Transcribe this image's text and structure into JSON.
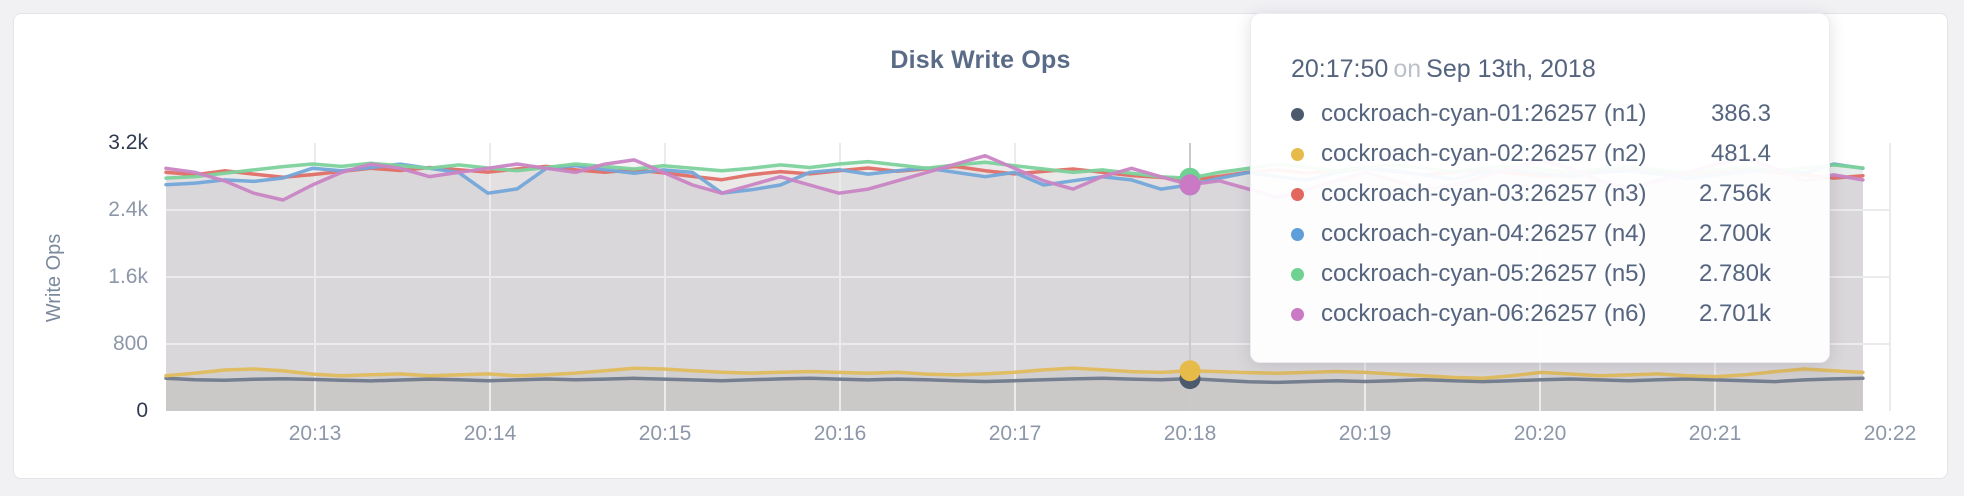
{
  "chart_data": {
    "type": "line",
    "title": "Disk Write Ops",
    "ylabel": "Write Ops",
    "xlabel": "",
    "grid": true,
    "ylim": [
      0,
      3200
    ],
    "y_ticks": [
      "0",
      "800",
      "1.6k",
      "2.4k",
      "3.2k"
    ],
    "x_ticks": [
      "20:13",
      "20:14",
      "20:15",
      "20:16",
      "20:17",
      "20:18",
      "20:19",
      "20:20",
      "20:21",
      "20:22"
    ],
    "point_interval_seconds": 10,
    "hover_index": 35,
    "hover_time": "20:17:50",
    "series": [
      {
        "name": "cockroach-cyan-01:26257 (n1)",
        "dot_color": "#4c5a6d",
        "line_color": "#6f7a8c",
        "values": [
          392,
          374,
          366,
          378,
          385,
          377,
          368,
          360,
          370,
          381,
          372,
          362,
          371,
          382,
          373,
          381,
          390,
          381,
          371,
          362,
          372,
          383,
          391,
          381,
          371,
          381,
          372,
          361,
          352,
          362,
          373,
          383,
          391,
          381,
          372,
          386.3,
          368,
          350,
          341,
          352,
          362,
          352,
          362,
          372,
          361,
          351,
          362,
          373,
          382,
          371,
          361,
          372,
          382,
          371,
          361,
          351,
          371,
          383,
          391
        ]
      },
      {
        "name": "cockroach-cyan-02:26257 (n2)",
        "dot_color": "#e7bb49",
        "line_color": "#e0ba5c",
        "values": [
          421,
          452,
          489,
          502,
          480,
          441,
          422,
          432,
          443,
          421,
          431,
          443,
          421,
          432,
          452,
          481,
          511,
          501,
          481,
          462,
          452,
          462,
          472,
          461,
          451,
          462,
          441,
          431,
          443,
          462,
          491,
          512,
          492,
          471,
          461,
          481.4,
          471,
          459,
          450,
          461,
          472,
          461,
          441,
          421,
          401,
          391,
          421,
          461,
          442,
          421,
          431,
          443,
          421,
          411,
          432,
          471,
          501,
          481,
          461
        ]
      },
      {
        "name": "cockroach-cyan-03:26257 (n3)",
        "dot_color": "#e2675e",
        "line_color": "#e06e66",
        "values": [
          2851,
          2822,
          2868,
          2829,
          2791,
          2823,
          2861,
          2899,
          2872,
          2908,
          2881,
          2852,
          2889,
          2921,
          2879,
          2851,
          2882,
          2843,
          2801,
          2762,
          2821,
          2859,
          2831,
          2869,
          2901,
          2862,
          2891,
          2919,
          2869,
          2831,
          2861,
          2889,
          2851,
          2812,
          2789,
          2756,
          2801,
          2852,
          2879,
          2841,
          2869,
          2898,
          2859,
          2821,
          2851,
          2879,
          2839,
          2801,
          2829,
          2868,
          2899,
          2861,
          2829,
          2859,
          2889,
          2851,
          2819,
          2781,
          2809
        ]
      },
      {
        "name": "cockroach-cyan-04:26257 (n4)",
        "dot_color": "#5e9fd9",
        "line_color": "#73a7d9",
        "values": [
          2702,
          2721,
          2759,
          2741,
          2782,
          2898,
          2869,
          2908,
          2948,
          2898,
          2849,
          2601,
          2652,
          2898,
          2929,
          2881,
          2839,
          2879,
          2849,
          2602,
          2641,
          2699,
          2849,
          2881,
          2829,
          2868,
          2901,
          2849,
          2798,
          2849,
          2699,
          2749,
          2798,
          2759,
          2649,
          2700,
          2779,
          2849,
          2798,
          2759,
          2849,
          2898,
          2869,
          2819,
          2769,
          2849,
          2879,
          2839,
          2798,
          2849,
          2869,
          2829,
          2779,
          2819,
          2859,
          2879,
          2839,
          2949,
          2898
        ]
      },
      {
        "name": "cockroach-cyan-05:26257 (n5)",
        "dot_color": "#70d292",
        "line_color": "#7cd29b",
        "values": [
          2781,
          2799,
          2839,
          2879,
          2918,
          2949,
          2921,
          2958,
          2929,
          2898,
          2939,
          2901,
          2869,
          2908,
          2949,
          2919,
          2889,
          2929,
          2898,
          2869,
          2898,
          2939,
          2908,
          2949,
          2978,
          2939,
          2898,
          2939,
          2969,
          2929,
          2889,
          2849,
          2879,
          2839,
          2798,
          2780,
          2849,
          2898,
          2949,
          2908,
          2869,
          2908,
          2939,
          2898,
          2859,
          2898,
          2929,
          2889,
          2849,
          2889,
          2919,
          2879,
          2839,
          2879,
          2908,
          2869,
          2898,
          2939,
          2902
        ]
      },
      {
        "name": "cockroach-cyan-06:26257 (n6)",
        "dot_color": "#ca7ac5",
        "line_color": "#c985c4",
        "values": [
          2898,
          2849,
          2749,
          2601,
          2519,
          2699,
          2849,
          2948,
          2898,
          2799,
          2849,
          2898,
          2949,
          2898,
          2849,
          2948,
          2998,
          2849,
          2699,
          2601,
          2699,
          2798,
          2699,
          2601,
          2649,
          2749,
          2849,
          2948,
          3048,
          2898,
          2749,
          2649,
          2798,
          2898,
          2798,
          2701,
          2749,
          2649,
          2549,
          2649,
          2749,
          2849,
          2749,
          2649,
          2699,
          2798,
          2898,
          2998,
          2898,
          2749,
          2649,
          2749,
          2849,
          2948,
          3018,
          2898,
          2749,
          2819,
          2759
        ]
      }
    ]
  },
  "tooltip": {
    "time": "20:17:50",
    "conjunction": "on",
    "date": "Sep 13th, 2018",
    "rows": [
      {
        "label": "cockroach-cyan-01:26257 (n1)",
        "value": "386.3"
      },
      {
        "label": "cockroach-cyan-02:26257 (n2)",
        "value": "481.4"
      },
      {
        "label": "cockroach-cyan-03:26257 (n3)",
        "value": "2.756k"
      },
      {
        "label": "cockroach-cyan-04:26257 (n4)",
        "value": "2.700k"
      },
      {
        "label": "cockroach-cyan-05:26257 (n5)",
        "value": "2.780k"
      },
      {
        "label": "cockroach-cyan-06:26257 (n6)",
        "value": "2.701k"
      }
    ]
  },
  "colors": {
    "page_bg": "#f1f1f4",
    "card_bg": "#ffffff",
    "card_border": "#e4e5e9",
    "grid_line": "#ebebee",
    "hover_line": "#c9cace",
    "area_gray": "#73737e",
    "title_text": "#5a6b87",
    "tick_text": "#8d97a8",
    "tick_text_extreme": "#313b4f",
    "tooltip_text": "#56657f"
  }
}
